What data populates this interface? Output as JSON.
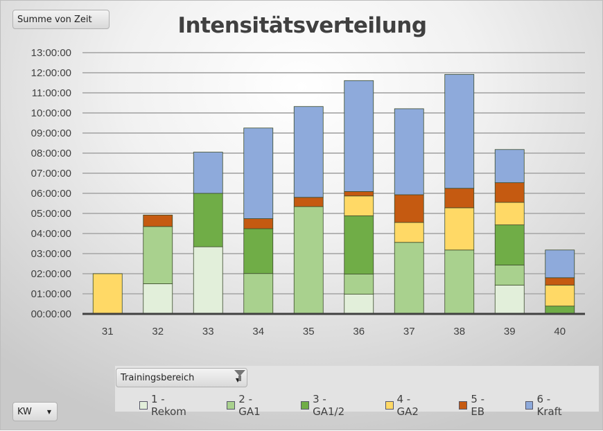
{
  "buttons": {
    "value_field": "Summe von Zeit",
    "legend_field": "Trainingsbereich",
    "axis_field": "KW"
  },
  "icons": {
    "legend_field": [
      "chevron-down-icon",
      "filter-icon"
    ],
    "axis_field": "chevron-down-icon"
  },
  "chart_data": {
    "type": "bar",
    "stacked": true,
    "title": "Intensitätsverteilung",
    "xlabel": "",
    "ylabel": "",
    "ylim": [
      0,
      13
    ],
    "yunit": "hours",
    "ytick_labels": [
      "00:00:00",
      "01:00:00",
      "02:00:00",
      "03:00:00",
      "04:00:00",
      "05:00:00",
      "06:00:00",
      "07:00:00",
      "08:00:00",
      "09:00:00",
      "10:00:00",
      "11:00:00",
      "12:00:00",
      "13:00:00"
    ],
    "categories": [
      "31",
      "32",
      "33",
      "34",
      "35",
      "36",
      "37",
      "38",
      "39",
      "40"
    ],
    "grid": true,
    "legend_position": "bottom",
    "series": [
      {
        "name": "1 - Rekom",
        "color": "#e2efda",
        "values": [
          0,
          1.5,
          3.34,
          0,
          0,
          0.98,
          0,
          0,
          1.43,
          0
        ]
      },
      {
        "name": "2 - GA1",
        "color": "#a9d18e",
        "values": [
          0,
          2.85,
          0,
          2.01,
          5.34,
          1.0,
          3.56,
          3.18,
          1.0,
          0
        ]
      },
      {
        "name": "3 - GA1/2",
        "color": "#70ad47",
        "values": [
          0,
          0,
          2.66,
          2.23,
          0,
          2.9,
          0,
          0,
          2.0,
          0.39
        ]
      },
      {
        "name": "4 - GA2",
        "color": "#ffd966",
        "values": [
          2.0,
          0,
          0,
          0,
          0,
          0.99,
          0.99,
          2.1,
          1.12,
          1.04
        ]
      },
      {
        "name": "5 - EB",
        "color": "#c55a11",
        "values": [
          0,
          0.57,
          0,
          0.5,
          0.46,
          0.22,
          1.38,
          0.97,
          0.98,
          0.37
        ]
      },
      {
        "name": "6 - Kraft",
        "color": "#8eaadb",
        "values": [
          0,
          0,
          2.05,
          4.51,
          4.52,
          5.52,
          4.28,
          5.67,
          1.65,
          1.38
        ]
      }
    ]
  }
}
